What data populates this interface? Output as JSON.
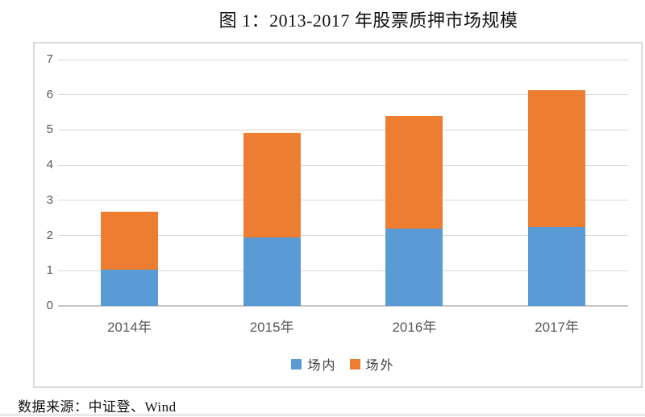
{
  "title": "图 1：2013-2017 年股票质押市场规模",
  "source": "数据来源：中证登、Wind",
  "colors": {
    "on_exchange": "#5B9BD5",
    "off_exchange": "#ED7D31",
    "gridline": "#D9D9D9",
    "axis_line": "#C6C6C6",
    "tick_text": "#595959",
    "chart_border": "#D9D9D9"
  },
  "chart_data": {
    "type": "bar",
    "stacked": true,
    "title": "图 1：2013-2017 年股票质押市场规模",
    "categories": [
      "2014年",
      "2015年",
      "2016年",
      "2017年"
    ],
    "series": [
      {
        "key": "on-exchange",
        "name": "场内",
        "color": "#5B9BD5",
        "values": [
          1.03,
          1.95,
          2.2,
          2.25
        ]
      },
      {
        "key": "off-exchange",
        "name": "场外",
        "color": "#ED7D31",
        "values": [
          1.64,
          2.96,
          3.21,
          3.89
        ]
      }
    ],
    "totals": [
      2.67,
      4.91,
      5.41,
      6.14
    ],
    "xlabel": "",
    "ylabel": "",
    "ylim": [
      0,
      7
    ],
    "yticks": [
      0,
      1,
      2,
      3,
      4,
      5,
      6,
      7
    ],
    "grid": true,
    "legend_position": "bottom",
    "legend_entries": [
      "场内",
      "场外"
    ]
  }
}
